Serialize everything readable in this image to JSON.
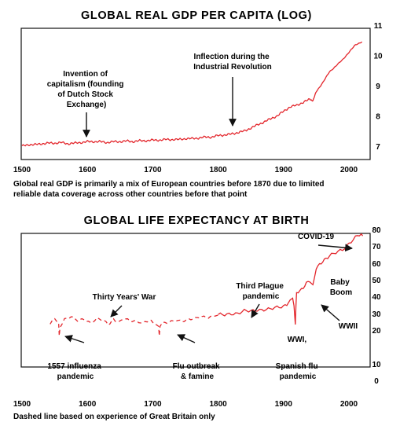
{
  "chart_data": [
    {
      "type": "line",
      "title": "GLOBAL REAL GDP PER CAPITA (LOG)",
      "xlim": [
        1500,
        2025
      ],
      "ylim": [
        6.6,
        11
      ],
      "x_ticks": [
        "1500",
        "1600",
        "1700",
        "1800",
        "1900",
        "2000"
      ],
      "y_ticks": [
        "7",
        "8",
        "9",
        "10",
        "11"
      ],
      "series_color": "#e3262c",
      "series": [
        {
          "x": [
            1500,
            1510,
            1520,
            1530,
            1540,
            1550,
            1560,
            1570,
            1580,
            1590,
            1600,
            1610,
            1620,
            1630,
            1640,
            1650,
            1660,
            1670,
            1680,
            1690,
            1700,
            1710,
            1720,
            1730,
            1740,
            1750,
            1760,
            1770,
            1780,
            1790,
            1800,
            1810,
            1820,
            1830,
            1840,
            1850,
            1860,
            1870,
            1880,
            1890,
            1900,
            1910,
            1920,
            1930,
            1940,
            1945,
            1950,
            1960,
            1970,
            1980,
            1990,
            2000,
            2010,
            2020
          ],
          "values": [
            7.0,
            7.05,
            7.05,
            7.08,
            7.1,
            7.1,
            7.12,
            7.08,
            7.1,
            7.12,
            7.15,
            7.15,
            7.15,
            7.12,
            7.15,
            7.15,
            7.17,
            7.15,
            7.18,
            7.18,
            7.2,
            7.2,
            7.22,
            7.22,
            7.22,
            7.25,
            7.25,
            7.27,
            7.3,
            7.3,
            7.35,
            7.37,
            7.4,
            7.45,
            7.5,
            7.6,
            7.7,
            7.8,
            7.9,
            8.0,
            8.15,
            8.3,
            8.35,
            8.45,
            8.55,
            8.5,
            8.8,
            9.1,
            9.45,
            9.65,
            9.85,
            10.1,
            10.35,
            10.45
          ]
        }
      ],
      "annotations": [
        {
          "text": [
            "Invention of",
            "capitalism (founding",
            "of Dutch Stock",
            "Exchange)"
          ],
          "x": 1600
        },
        {
          "text": [
            "Inflection during the",
            "Industrial  Revolution"
          ],
          "x": 1820
        }
      ],
      "note": [
        "Global real GDP is primarily a mix of European countries before 1870 due to limited",
        "reliable data coverage across other countries before that point"
      ]
    },
    {
      "type": "line",
      "title": "GLOBAL LIFE EXPECTANCY AT BIRTH",
      "xlim": [
        1500,
        2025
      ],
      "ylim": [
        0,
        80
      ],
      "x_ticks": [
        "1500",
        "1600",
        "1700",
        "1800",
        "1900",
        "2000"
      ],
      "y_ticks": [
        "0",
        "10",
        "20",
        "30",
        "40",
        "50",
        "60",
        "70",
        "80"
      ],
      "series_color": "#e3262c",
      "series": [
        {
          "style": "dashed",
          "x": [
            1543,
            1550,
            1556,
            1557,
            1558,
            1565,
            1575,
            1585,
            1595,
            1605,
            1615,
            1625,
            1632,
            1640,
            1648,
            1655,
            1665,
            1675,
            1685,
            1695,
            1700,
            1705,
            1709,
            1710,
            1711,
            1715,
            1725,
            1735,
            1745,
            1755,
            1765,
            1775,
            1785,
            1795,
            1800
          ],
          "values": [
            30,
            33,
            31,
            24,
            29,
            33,
            34,
            32,
            33,
            31,
            33,
            32,
            30,
            33,
            31,
            33,
            32,
            32,
            31,
            32,
            31,
            30,
            29,
            24,
            29,
            31,
            31,
            32,
            32,
            33,
            33,
            34,
            34,
            35,
            35
          ]
        },
        {
          "style": "solid",
          "x": [
            1800,
            1810,
            1820,
            1830,
            1840,
            1850,
            1860,
            1870,
            1880,
            1890,
            1900,
            1905,
            1910,
            1914,
            1916,
            1918,
            1919,
            1920,
            1925,
            1930,
            1935,
            1940,
            1945,
            1950,
            1955,
            1960,
            1965,
            1970,
            1980,
            1990,
            2000,
            2010,
            2019,
            2021
          ],
          "values": [
            35,
            35,
            36,
            36,
            37,
            37,
            38,
            38,
            38,
            39,
            40,
            41,
            43,
            44,
            40,
            30,
            40,
            47,
            48,
            50,
            52,
            53,
            50,
            60,
            62,
            64,
            65,
            66,
            68,
            70,
            73,
            76,
            78,
            77
          ]
        }
      ],
      "annotations": [
        {
          "text": [
            "COVID-19"
          ],
          "x": 2020
        },
        {
          "text": [
            "Baby",
            "Boom"
          ]
        },
        {
          "text": [
            "Third Plague",
            "pandemic"
          ],
          "x": 1855
        },
        {
          "text": [
            "Thirty Years' War"
          ],
          "x": 1640
        },
        {
          "text": [
            "WWII"
          ],
          "x": 1944
        },
        {
          "text": [
            "WWI,"
          ],
          "x": 1916
        },
        {
          "text": [
            "1557 influenza",
            "pandemic"
          ],
          "x": 1557
        },
        {
          "text": [
            "Flu outbreak",
            "& famine"
          ],
          "x": 1710
        },
        {
          "text": [
            "Spanish flu",
            "pandemic"
          ],
          "x": 1918
        }
      ],
      "note": [
        "Dashed line based on experience of Great Britain only"
      ]
    }
  ]
}
